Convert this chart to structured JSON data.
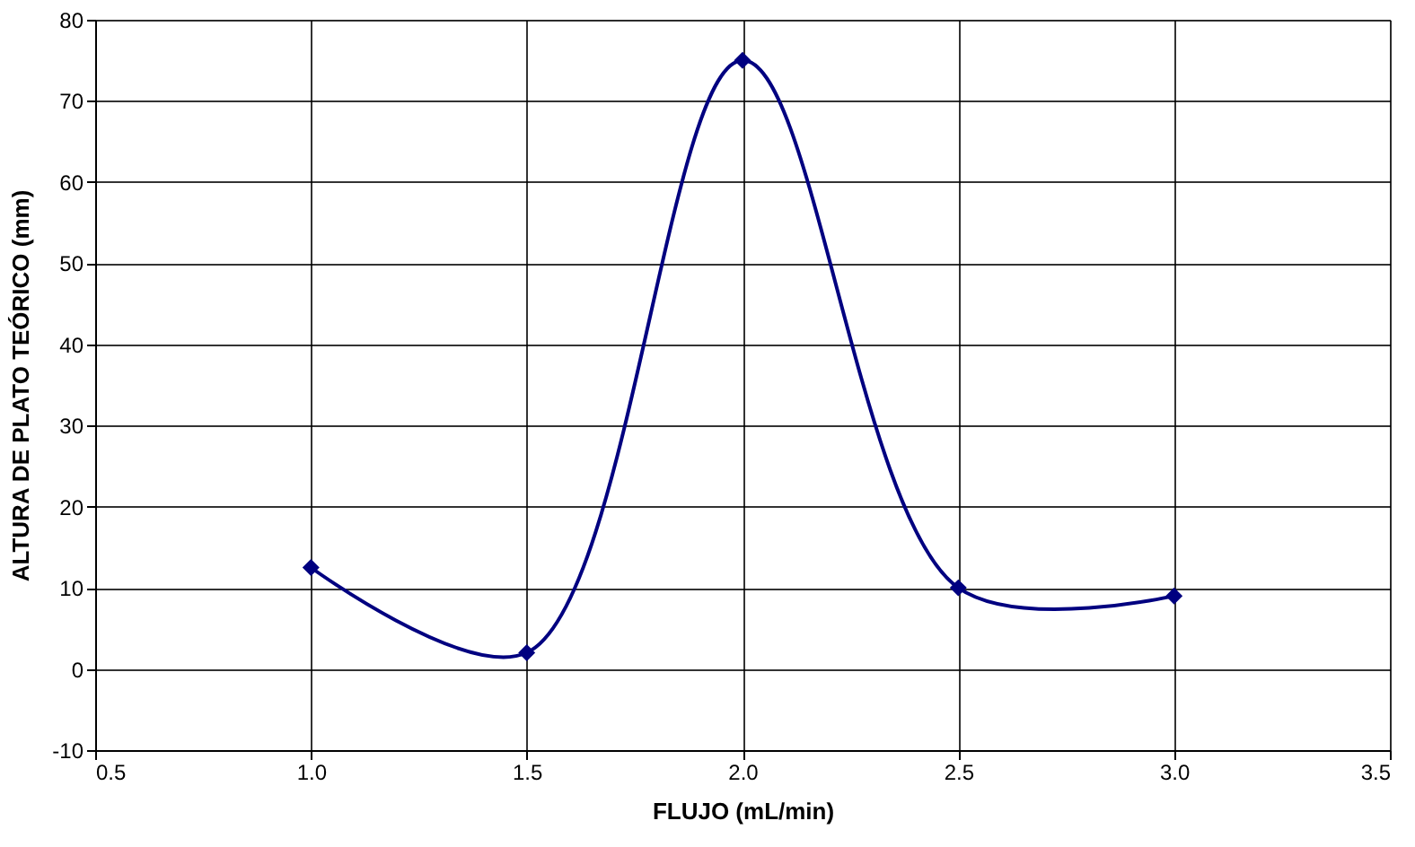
{
  "chart_data": {
    "type": "line",
    "xlabel": "FLUJO (mL/min)",
    "ylabel": "ALTURA DE PLATO TEÓRICO (mm)",
    "x": [
      1.0,
      1.5,
      2.0,
      2.5,
      3.0
    ],
    "series": [
      {
        "color": "#000080",
        "values": [
          12.5,
          2,
          75,
          10,
          9
        ]
      }
    ],
    "xlim": [
      0.5,
      3.5
    ],
    "xticks": [
      {
        "value": 0.5,
        "label": "0.5"
      },
      {
        "value": 1,
        "label": "1.0"
      },
      {
        "value": 1.5,
        "label": "1.5"
      },
      {
        "value": 2,
        "label": "2.0"
      },
      {
        "value": 2.5,
        "label": "2.5"
      },
      {
        "value": 3,
        "label": "3.0"
      },
      {
        "value": 3.5,
        "label": "3.5"
      }
    ],
    "ylim": [
      -10,
      80
    ],
    "yticks": [
      -10,
      0,
      10,
      20,
      30,
      40,
      50,
      60,
      70,
      80
    ],
    "grid": true,
    "marker": "diamond",
    "line_style": "solid"
  }
}
